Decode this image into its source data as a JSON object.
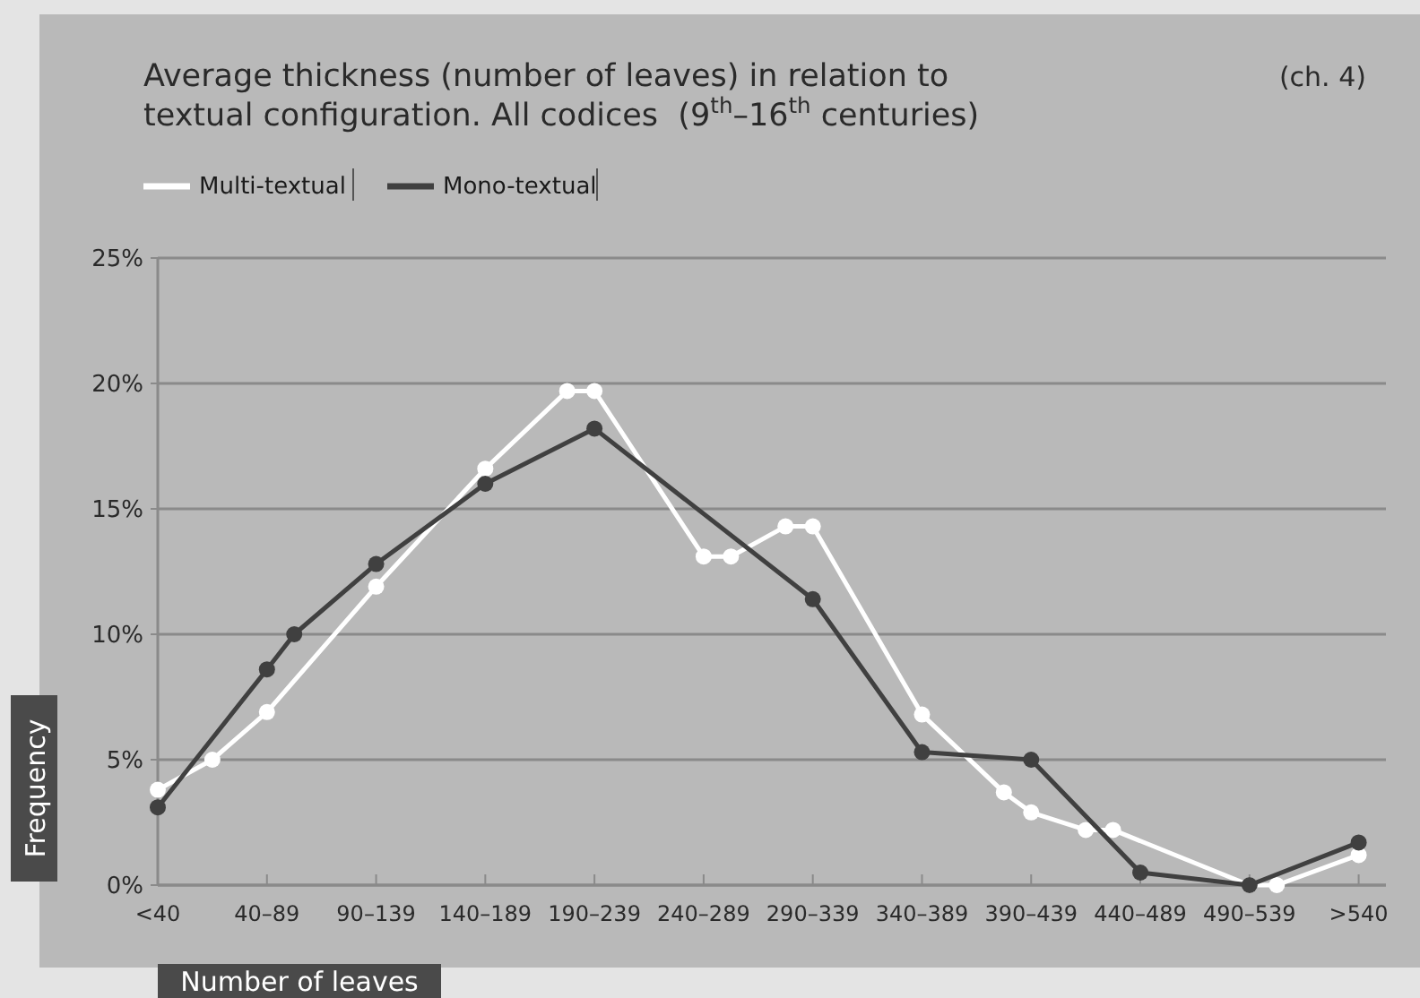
{
  "chart_data": {
    "type": "line",
    "title": "Average thickness (number of leaves) in relation to textual configuration. All codices  (9$^{th}$–16$^{th}$ centuries)",
    "xlabel": "Number of leaves",
    "ylabel": "Frequency",
    "annotations": [
      "(ch. 4)"
    ],
    "categories": [
      "<40",
      null,
      null,
      null,
      "40–89",
      null,
      null,
      null,
      "90–139",
      null,
      null,
      null,
      "140–189",
      null,
      null,
      null,
      "190–239",
      null,
      null,
      null,
      "240–289",
      null,
      null,
      null,
      "290–339",
      null,
      null,
      null,
      "340–389",
      null,
      null,
      null,
      "390–439",
      null,
      null,
      null,
      "440–489",
      null,
      null,
      null,
      "490–539",
      null,
      null,
      null,
      ">540"
    ],
    "ylim": [
      0,
      25
    ],
    "yticks": [
      {
        "value": 0,
        "label": "0%"
      },
      {
        "value": 5,
        "label": "5%"
      },
      {
        "value": 10,
        "label": "10%"
      },
      {
        "value": 15,
        "label": "15%"
      },
      {
        "value": 20,
        "label": "20%"
      },
      {
        "value": 25,
        "label": "25%"
      }
    ],
    "grid": "y",
    "legend": "top left",
    "marker": "circle",
    "line_style": "solid",
    "series": [
      {
        "name": "Multi-textual",
        "color": "#ffffff",
        "values": [
          3.8,
          null,
          5,
          null,
          6.9,
          null,
          null,
          null,
          11.9,
          null,
          null,
          null,
          16.6,
          null,
          null,
          19.7,
          19.7,
          null,
          null,
          null,
          13.1,
          13.1,
          null,
          14.3,
          14.3,
          null,
          null,
          null,
          6.8,
          null,
          null,
          3.7,
          2.9,
          null,
          2.2,
          2.2,
          null,
          null,
          null,
          null,
          0,
          0,
          null,
          null,
          1.2
        ]
      },
      {
        "name": "Mono-textual",
        "color": "#404040",
        "values": [
          3.1,
          null,
          null,
          null,
          8.6,
          10,
          null,
          null,
          12.8,
          null,
          null,
          null,
          16,
          null,
          null,
          null,
          18.2,
          null,
          null,
          null,
          null,
          null,
          null,
          null,
          11.4,
          null,
          null,
          null,
          5.3,
          null,
          null,
          null,
          5,
          null,
          null,
          null,
          0.5,
          null,
          null,
          null,
          0,
          null,
          null,
          null,
          1.7
        ]
      }
    ]
  }
}
